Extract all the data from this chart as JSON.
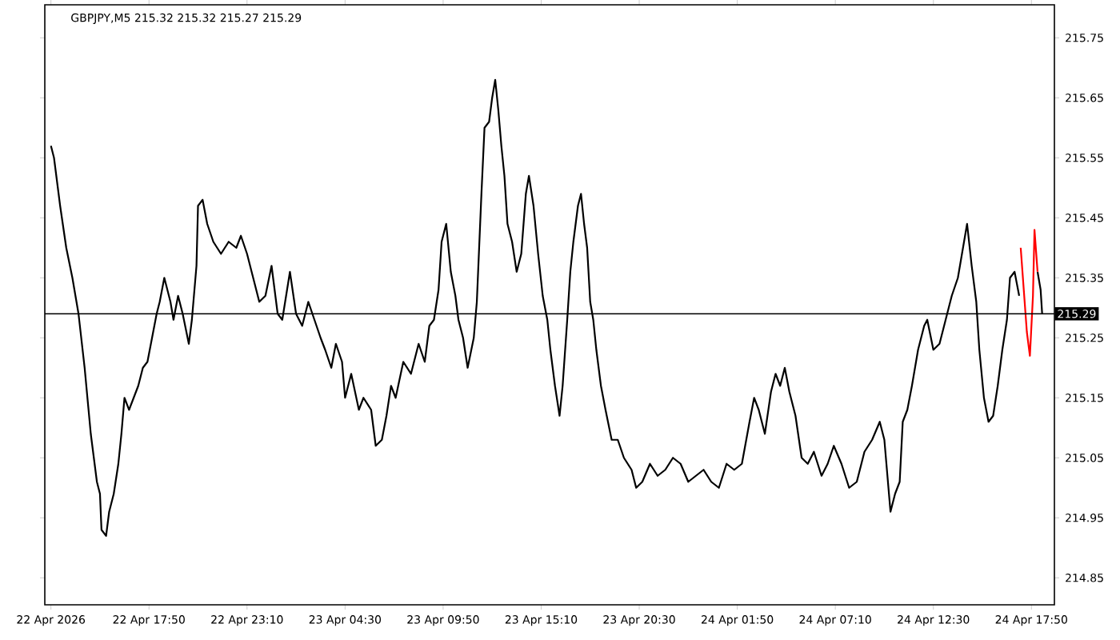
{
  "chart_data": {
    "type": "line",
    "title": "GBPJPY,M5  215.32 215.32 215.27 215.29",
    "xlim": [
      "2026-04-22T12:10",
      "2026-04-24T19:05"
    ],
    "ylim": [
      214.805,
      215.805
    ],
    "xticks": [
      {
        "value": "2026-04-22T12:30",
        "label": "22 Apr 2026"
      },
      {
        "value": "2026-04-22T17:50",
        "label": "22 Apr 17:50"
      },
      {
        "value": "2026-04-22T23:10",
        "label": "22 Apr 23:10"
      },
      {
        "value": "2026-04-23T04:30",
        "label": "23 Apr 04:30"
      },
      {
        "value": "2026-04-23T09:50",
        "label": "23 Apr 09:50"
      },
      {
        "value": "2026-04-23T15:10",
        "label": "23 Apr 15:10"
      },
      {
        "value": "2026-04-23T20:30",
        "label": "23 Apr 20:30"
      },
      {
        "value": "2026-04-24T01:50",
        "label": "24 Apr 01:50"
      },
      {
        "value": "2026-04-24T07:10",
        "label": "24 Apr 07:10"
      },
      {
        "value": "2026-04-24T12:30",
        "label": "24 Apr 12:30"
      },
      {
        "value": "2026-04-24T17:50",
        "label": "24 Apr 17:50"
      }
    ],
    "yticks": [
      214.85,
      214.95,
      215.05,
      215.15,
      215.25,
      215.35,
      215.45,
      215.55,
      215.65,
      215.75
    ],
    "ref_lines": [
      {
        "axis": "y",
        "value": 215.29,
        "label": "215.29",
        "color": "#000000"
      }
    ],
    "series": [
      {
        "color": "#000000",
        "x": [
          "2026-04-22T12:30",
          "2026-04-22T12:40",
          "2026-04-22T13:00",
          "2026-04-22T13:20",
          "2026-04-22T13:40",
          "2026-04-22T13:50",
          "2026-04-22T14:00",
          "2026-04-22T14:20",
          "2026-04-22T14:40",
          "2026-04-22T15:00",
          "2026-04-22T15:10",
          "2026-04-22T15:15",
          "2026-04-22T15:30",
          "2026-04-22T15:40",
          "2026-04-22T15:55",
          "2026-04-22T16:10",
          "2026-04-22T16:20",
          "2026-04-22T16:30",
          "2026-04-22T16:45",
          "2026-04-22T17:00",
          "2026-04-22T17:15",
          "2026-04-22T17:30",
          "2026-04-22T17:45",
          "2026-04-22T18:00",
          "2026-04-22T18:15",
          "2026-04-22T18:25",
          "2026-04-22T18:40",
          "2026-04-22T19:00",
          "2026-04-22T19:10",
          "2026-04-22T19:25",
          "2026-04-22T19:40",
          "2026-04-22T20:00",
          "2026-04-22T20:10",
          "2026-04-22T20:25",
          "2026-04-22T20:30",
          "2026-04-22T20:45",
          "2026-04-22T21:00",
          "2026-04-22T21:20",
          "2026-04-22T21:45",
          "2026-04-22T22:10",
          "2026-04-22T22:35",
          "2026-04-22T22:50",
          "2026-04-22T23:10",
          "2026-04-22T23:25",
          "2026-04-22T23:50",
          "2026-04-23T00:10",
          "2026-04-23T00:30",
          "2026-04-23T00:50",
          "2026-04-23T01:05",
          "2026-04-23T01:30",
          "2026-04-23T01:50",
          "2026-04-23T02:10",
          "2026-04-23T02:30",
          "2026-04-23T02:50",
          "2026-04-23T03:10",
          "2026-04-23T03:25",
          "2026-04-23T03:45",
          "2026-04-23T04:00",
          "2026-04-23T04:20",
          "2026-04-23T04:30",
          "2026-04-23T04:50",
          "2026-04-23T05:15",
          "2026-04-23T05:30",
          "2026-04-23T05:55",
          "2026-04-23T06:10",
          "2026-04-23T06:30",
          "2026-04-23T06:45",
          "2026-04-23T07:00",
          "2026-04-23T07:15",
          "2026-04-23T07:40",
          "2026-04-23T08:05",
          "2026-04-23T08:30",
          "2026-04-23T08:50",
          "2026-04-23T09:05",
          "2026-04-23T09:20",
          "2026-04-23T09:35",
          "2026-04-23T09:45",
          "2026-04-23T10:00",
          "2026-04-23T10:15",
          "2026-04-23T10:30",
          "2026-04-23T10:40",
          "2026-04-23T10:55",
          "2026-04-23T11:10",
          "2026-04-23T11:30",
          "2026-04-23T11:40",
          "2026-04-23T11:55",
          "2026-04-23T12:05",
          "2026-04-23T12:20",
          "2026-04-23T12:30",
          "2026-04-23T12:40",
          "2026-04-23T12:50",
          "2026-04-23T13:00",
          "2026-04-23T13:10",
          "2026-04-23T13:20",
          "2026-04-23T13:35",
          "2026-04-23T13:50",
          "2026-04-23T14:05",
          "2026-04-23T14:20",
          "2026-04-23T14:30",
          "2026-04-23T14:45",
          "2026-04-23T15:00",
          "2026-04-23T15:15",
          "2026-04-23T15:30",
          "2026-04-23T15:40",
          "2026-04-23T15:55",
          "2026-04-23T16:10",
          "2026-04-23T16:20",
          "2026-04-23T16:35",
          "2026-04-23T16:45",
          "2026-04-23T16:55",
          "2026-04-23T17:10",
          "2026-04-23T17:20",
          "2026-04-23T17:30",
          "2026-04-23T17:40",
          "2026-04-23T17:50",
          "2026-04-23T18:00",
          "2026-04-23T18:10",
          "2026-04-23T18:25",
          "2026-04-23T18:40",
          "2026-04-23T19:00",
          "2026-04-23T19:20",
          "2026-04-23T19:40",
          "2026-04-23T20:05",
          "2026-04-23T20:20",
          "2026-04-23T20:40",
          "2026-04-23T21:05",
          "2026-04-23T21:30",
          "2026-04-23T21:55",
          "2026-04-23T22:20",
          "2026-04-23T22:45",
          "2026-04-23T23:10",
          "2026-04-23T23:35",
          "2026-04-24T00:00",
          "2026-04-24T00:25",
          "2026-04-24T00:50",
          "2026-04-24T01:15",
          "2026-04-24T01:40",
          "2026-04-24T02:05",
          "2026-04-24T02:30",
          "2026-04-24T02:45",
          "2026-04-24T03:00",
          "2026-04-24T03:20",
          "2026-04-24T03:40",
          "2026-04-24T03:55",
          "2026-04-24T04:10",
          "2026-04-24T04:25",
          "2026-04-24T04:40",
          "2026-04-24T05:00",
          "2026-04-24T05:20",
          "2026-04-24T05:40",
          "2026-04-24T06:00",
          "2026-04-24T06:25",
          "2026-04-24T06:45",
          "2026-04-24T07:05",
          "2026-04-24T07:30",
          "2026-04-24T07:55",
          "2026-04-24T08:20",
          "2026-04-24T08:45",
          "2026-04-24T09:10",
          "2026-04-24T09:35",
          "2026-04-24T09:50",
          "2026-04-24T10:10",
          "2026-04-24T10:25",
          "2026-04-24T10:40",
          "2026-04-24T10:50",
          "2026-04-24T11:05",
          "2026-04-24T11:20",
          "2026-04-24T11:40",
          "2026-04-24T12:00",
          "2026-04-24T12:10",
          "2026-04-24T12:30",
          "2026-04-24T12:50",
          "2026-04-24T13:10",
          "2026-04-24T13:30",
          "2026-04-24T13:50",
          "2026-04-24T14:10",
          "2026-04-24T14:20",
          "2026-04-24T14:35",
          "2026-04-24T14:50",
          "2026-04-24T15:00",
          "2026-04-24T15:15",
          "2026-04-24T15:30",
          "2026-04-24T15:45",
          "2026-04-24T16:00",
          "2026-04-24T16:15",
          "2026-04-24T16:30",
          "2026-04-24T16:40",
          "2026-04-24T16:55",
          "2026-04-24T17:10",
          "2026-04-24T17:40",
          "2026-04-24T18:10",
          "2026-04-24T18:20",
          "2026-04-24T18:25"
        ],
        "values": [
          215.57,
          215.55,
          215.47,
          215.4,
          215.35,
          215.32,
          215.29,
          215.2,
          215.09,
          215.01,
          214.99,
          214.93,
          214.92,
          214.96,
          214.99,
          215.04,
          215.09,
          215.15,
          215.13,
          215.15,
          215.17,
          215.2,
          215.21,
          215.25,
          215.29,
          215.31,
          215.35,
          215.31,
          215.28,
          215.32,
          215.29,
          215.24,
          215.28,
          215.37,
          215.47,
          215.48,
          215.44,
          215.41,
          215.39,
          215.41,
          215.4,
          215.42,
          215.39,
          215.36,
          215.31,
          215.32,
          215.37,
          215.29,
          215.28,
          215.36,
          215.29,
          215.27,
          215.31,
          215.28,
          215.25,
          215.23,
          215.2,
          215.24,
          215.21,
          215.15,
          215.19,
          215.13,
          215.15,
          215.13,
          215.07,
          215.08,
          215.12,
          215.17,
          215.15,
          215.21,
          215.19,
          215.24,
          215.21,
          215.27,
          215.28,
          215.33,
          215.41,
          215.44,
          215.36,
          215.32,
          215.28,
          215.25,
          215.2,
          215.25,
          215.31,
          215.49,
          215.6,
          215.61,
          215.65,
          215.68,
          215.63,
          215.57,
          215.52,
          215.44,
          215.41,
          215.36,
          215.39,
          215.49,
          215.52,
          215.47,
          215.39,
          215.32,
          215.28,
          215.23,
          215.17,
          215.12,
          215.17,
          215.28,
          215.36,
          215.41,
          215.47,
          215.49,
          215.44,
          215.4,
          215.31,
          215.28,
          215.23,
          215.17,
          215.13,
          215.08,
          215.08,
          215.05,
          215.03,
          215.0,
          215.01,
          215.04,
          215.02,
          215.03,
          215.05,
          215.04,
          215.01,
          215.02,
          215.03,
          215.01,
          215.0,
          215.04,
          215.03,
          215.04,
          215.11,
          215.15,
          215.13,
          215.09,
          215.16,
          215.19,
          215.17,
          215.2,
          215.16,
          215.12,
          215.05,
          215.04,
          215.06,
          215.02,
          215.04,
          215.07,
          215.04,
          215.0,
          215.01,
          215.06,
          215.08,
          215.11,
          215.08,
          214.96,
          214.99,
          215.01,
          215.11,
          215.13,
          215.17,
          215.23,
          215.27,
          215.28,
          215.23,
          215.24,
          215.28,
          215.32,
          215.35,
          215.41,
          215.44,
          215.37,
          215.31,
          215.23,
          215.15,
          215.11,
          215.12,
          215.17,
          215.23,
          215.28,
          215.35,
          215.36,
          215.32,
          null,
          215.36,
          215.33,
          215.29
        ]
      },
      {
        "color": "#ff0000",
        "x": [
          "2026-04-24T17:15",
          "2026-04-24T17:25",
          "2026-04-24T17:35",
          "2026-04-24T17:45",
          "2026-04-24T17:55",
          "2026-04-24T18:00",
          "2026-04-24T18:10"
        ],
        "values": [
          215.4,
          215.33,
          215.26,
          215.22,
          215.32,
          215.43,
          215.36
        ]
      }
    ]
  }
}
